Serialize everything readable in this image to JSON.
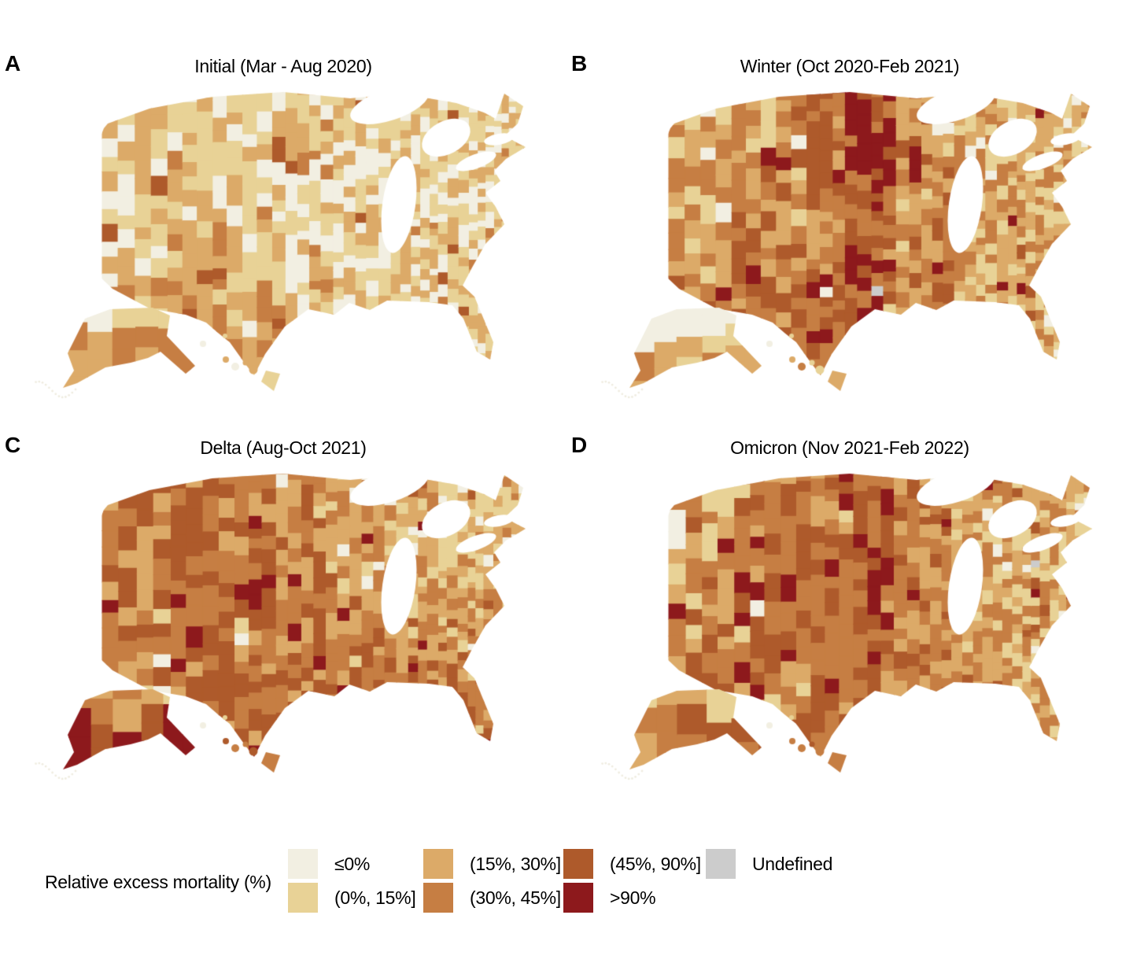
{
  "chart_data": {
    "type": "choropleth",
    "geography": "United States counties (contiguous US with Alaska and Hawaii insets)",
    "variable": "Relative excess mortality (%)",
    "legend_title": "Relative excess mortality (%)",
    "bins": [
      {
        "label": "≤0%",
        "color": "#f2efe2"
      },
      {
        "label": "(0%, 15%]",
        "color": "#e8d296"
      },
      {
        "label": "(15%, 30%]",
        "color": "#dcaa68"
      },
      {
        "label": "(30%, 45%]",
        "color": "#c67e43"
      },
      {
        "label": "(45%, 90%]",
        "color": "#ae5a2b"
      },
      {
        "label": ">90%",
        "color": "#8d191c"
      },
      {
        "label": "Undefined",
        "color": "#cccccc"
      }
    ],
    "panels": [
      {
        "letter": "A",
        "wave": "Initial",
        "period": "Mar - Aug 2020",
        "title": "Initial (Mar - Aug 2020)",
        "mean_bin_grid": [
          [
            1.4,
            1.2,
            1.1,
            1.0,
            0.9,
            0.9,
            1.0,
            1.1
          ],
          [
            1.3,
            1.6,
            1.1,
            0.9,
            0.9,
            0.9,
            1.0,
            1.8
          ],
          [
            1.3,
            2.2,
            1.4,
            1.0,
            0.9,
            1.0,
            1.1,
            1.2
          ],
          [
            1.6,
            2.6,
            1.8,
            1.1,
            1.0,
            1.2,
            1.2,
            1.1
          ],
          [
            1.8,
            2.4,
            2.2,
            1.6,
            1.2,
            1.4,
            1.3,
            1.0
          ]
        ],
        "alaska_mean_bin": 2.8,
        "hawaii_mean_bin": 1.3,
        "has_undefined_cells": false
      },
      {
        "letter": "B",
        "wave": "Winter",
        "period": "Oct 2020-Feb 2021",
        "title": "Winter (Oct 2020-Feb 2021)",
        "mean_bin_grid": [
          [
            1.6,
            2.2,
            3.0,
            4.2,
            2.8,
            2.2,
            1.8,
            1.6
          ],
          [
            2.2,
            2.8,
            3.2,
            4.4,
            2.8,
            2.2,
            2.0,
            1.8
          ],
          [
            2.4,
            3.2,
            3.0,
            3.8,
            2.8,
            2.2,
            2.0,
            1.8
          ],
          [
            2.6,
            3.4,
            3.4,
            3.6,
            2.8,
            2.2,
            2.0,
            1.8
          ],
          [
            2.8,
            3.4,
            3.6,
            3.4,
            3.0,
            2.4,
            2.0,
            1.6
          ]
        ],
        "alaska_mean_bin": 2.2,
        "hawaii_mean_bin": 1.6,
        "has_undefined_cells": true
      },
      {
        "letter": "C",
        "wave": "Delta",
        "period": "Aug-Oct 2021",
        "title": "Delta (Aug-Oct 2021)",
        "mean_bin_grid": [
          [
            3.0,
            3.6,
            3.4,
            2.6,
            2.0,
            1.6,
            1.3,
            1.4
          ],
          [
            3.4,
            3.8,
            3.6,
            2.6,
            2.2,
            2.0,
            1.8,
            1.4
          ],
          [
            3.2,
            3.8,
            3.2,
            2.8,
            2.6,
            2.6,
            2.2,
            1.8
          ],
          [
            2.8,
            3.4,
            3.2,
            3.4,
            3.2,
            3.0,
            2.8,
            2.2
          ],
          [
            2.6,
            3.0,
            3.4,
            3.8,
            3.6,
            3.6,
            3.6,
            3.0
          ]
        ],
        "alaska_mean_bin": 4.6,
        "hawaii_mean_bin": 3.0,
        "has_undefined_cells": true
      },
      {
        "letter": "D",
        "wave": "Omicron",
        "period": "Nov 2021-Feb 2022",
        "title": "Omicron (Nov 2021-Feb 2022)",
        "mean_bin_grid": [
          [
            2.0,
            2.8,
            3.2,
            3.8,
            2.8,
            2.2,
            2.0,
            1.8
          ],
          [
            2.6,
            3.2,
            3.6,
            4.0,
            2.8,
            2.2,
            2.0,
            1.8
          ],
          [
            2.8,
            3.4,
            3.6,
            3.6,
            2.8,
            2.2,
            2.0,
            1.8
          ],
          [
            2.8,
            3.6,
            3.4,
            3.2,
            2.8,
            2.4,
            2.2,
            1.8
          ],
          [
            2.6,
            3.0,
            3.0,
            3.0,
            2.8,
            2.6,
            2.2,
            1.8
          ]
        ],
        "alaska_mean_bin": 3.2,
        "hawaii_mean_bin": 2.6,
        "has_undefined_cells": true
      }
    ],
    "grid_note": "mean_bin_grid: 5 rows (north to south) x 8 columns (west to east) of mean legend-bin index (0 = ≤0% ... 5 = >90%) estimated visually from each panel of the figure"
  }
}
